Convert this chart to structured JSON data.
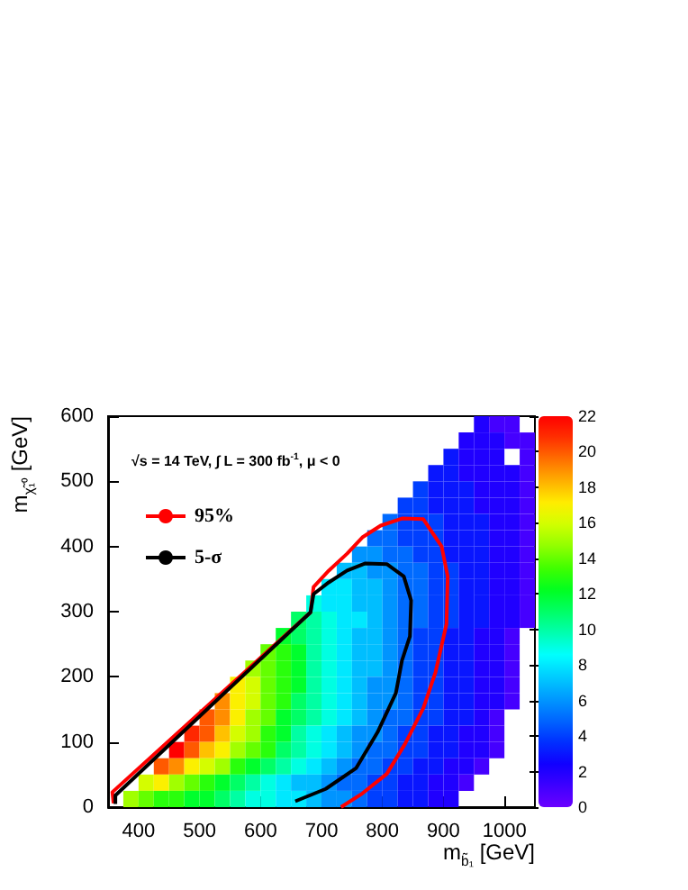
{
  "chart_data": {
    "type": "heatmap",
    "xlabel": "m$_{b̃₁}$ [GeV]",
    "ylabel": "m$_{χ̃₁⁰}$ [GeV]",
    "annotations": [
      "√s = 14 TeV, ∫ L = 300 fb$^{-1}$, μ < 0"
    ],
    "xlim": [
      350,
      1050
    ],
    "xticks": [
      400,
      500,
      600,
      700,
      800,
      900,
      1000
    ],
    "ylim": [
      0,
      600
    ],
    "yticks": [
      0,
      100,
      200,
      300,
      400,
      500,
      600
    ],
    "clim": [
      0,
      22
    ],
    "cticks": [
      0,
      2,
      4,
      6,
      8,
      10,
      12,
      14,
      16,
      18,
      20,
      22
    ],
    "legend": "top left",
    "marker": "none",
    "cells": [
      [
        null,
        null,
        null,
        null,
        null,
        null,
        null,
        null,
        null,
        null,
        null,
        null,
        null,
        null,
        null,
        null,
        null,
        null,
        null,
        null,
        null,
        null,
        null,
        null,
        2,
        1,
        1,
        null
      ],
      [
        null,
        null,
        null,
        null,
        null,
        null,
        null,
        null,
        null,
        null,
        null,
        null,
        null,
        null,
        null,
        null,
        null,
        null,
        null,
        null,
        null,
        null,
        null,
        2,
        2,
        2,
        1,
        1
      ],
      [
        null,
        null,
        null,
        null,
        null,
        null,
        null,
        null,
        null,
        null,
        null,
        null,
        null,
        null,
        null,
        null,
        null,
        null,
        null,
        null,
        null,
        null,
        3,
        2,
        2,
        2,
        null,
        1
      ],
      [
        null,
        null,
        null,
        null,
        null,
        null,
        null,
        null,
        null,
        null,
        null,
        null,
        null,
        null,
        null,
        null,
        null,
        null,
        null,
        null,
        null,
        3,
        3,
        2,
        2,
        2,
        2,
        1
      ],
      [
        null,
        null,
        null,
        null,
        null,
        null,
        null,
        null,
        null,
        null,
        null,
        null,
        null,
        null,
        null,
        null,
        null,
        null,
        null,
        null,
        4,
        3,
        3,
        3,
        2,
        2,
        2,
        1
      ],
      [
        null,
        null,
        null,
        null,
        null,
        null,
        null,
        null,
        null,
        null,
        null,
        null,
        null,
        null,
        null,
        null,
        null,
        null,
        null,
        4,
        4,
        3,
        3,
        3,
        2,
        2,
        2,
        1
      ],
      [
        null,
        null,
        null,
        null,
        null,
        null,
        null,
        null,
        null,
        null,
        null,
        null,
        null,
        null,
        null,
        null,
        null,
        null,
        5,
        4,
        4,
        4,
        3,
        3,
        3,
        2,
        2,
        1
      ],
      [
        null,
        null,
        null,
        null,
        null,
        null,
        null,
        null,
        null,
        null,
        null,
        null,
        null,
        null,
        null,
        null,
        null,
        5,
        5,
        4,
        4,
        4,
        3,
        3,
        3,
        2,
        2,
        1
      ],
      [
        null,
        null,
        null,
        null,
        null,
        null,
        null,
        null,
        null,
        null,
        null,
        null,
        null,
        null,
        null,
        null,
        6,
        6,
        5,
        5,
        4,
        4,
        3,
        3,
        3,
        2,
        2,
        1
      ],
      [
        null,
        null,
        null,
        null,
        null,
        null,
        null,
        null,
        null,
        null,
        null,
        null,
        null,
        null,
        null,
        7,
        7,
        6,
        6,
        5,
        5,
        4,
        4,
        3,
        3,
        2,
        2,
        1
      ],
      [
        null,
        null,
        null,
        null,
        null,
        null,
        null,
        null,
        null,
        null,
        null,
        null,
        null,
        null,
        8,
        8,
        7,
        7,
        6,
        5,
        5,
        4,
        4,
        3,
        3,
        2,
        2,
        1
      ],
      [
        null,
        null,
        null,
        null,
        null,
        null,
        null,
        null,
        null,
        null,
        null,
        null,
        null,
        9,
        8,
        8,
        7,
        7,
        6,
        5,
        5,
        4,
        4,
        3,
        3,
        2,
        2,
        1
      ],
      [
        null,
        null,
        null,
        null,
        null,
        null,
        null,
        null,
        null,
        null,
        null,
        null,
        11,
        10,
        9,
        8,
        8,
        7,
        6,
        5,
        5,
        4,
        4,
        3,
        3,
        2,
        2,
        1
      ],
      [
        null,
        null,
        null,
        null,
        null,
        null,
        null,
        null,
        null,
        null,
        null,
        12,
        11,
        10,
        9,
        8,
        7,
        7,
        6,
        5,
        4,
        4,
        3,
        3,
        2,
        2,
        1,
        null
      ],
      [
        null,
        null,
        null,
        null,
        null,
        null,
        null,
        null,
        null,
        null,
        14,
        13,
        12,
        10,
        9,
        8,
        7,
        7,
        6,
        5,
        4,
        4,
        3,
        3,
        2,
        2,
        1,
        null
      ],
      [
        null,
        null,
        null,
        null,
        null,
        null,
        null,
        null,
        null,
        15,
        14,
        13,
        12,
        10,
        9,
        8,
        7,
        7,
        6,
        5,
        4,
        4,
        3,
        3,
        2,
        2,
        1,
        null
      ],
      [
        null,
        null,
        null,
        null,
        null,
        null,
        null,
        null,
        17,
        16,
        14,
        13,
        12,
        10,
        9,
        8,
        7,
        6,
        6,
        5,
        4,
        4,
        3,
        3,
        2,
        2,
        1,
        null
      ],
      [
        null,
        null,
        null,
        null,
        null,
        null,
        null,
        19,
        17,
        16,
        14,
        13,
        11,
        10,
        9,
        8,
        7,
        6,
        6,
        5,
        4,
        4,
        3,
        3,
        2,
        2,
        1,
        null
      ],
      [
        null,
        null,
        null,
        null,
        null,
        null,
        20,
        19,
        17,
        15,
        14,
        12,
        11,
        10,
        9,
        8,
        7,
        6,
        5,
        5,
        4,
        4,
        3,
        3,
        2,
        1,
        null,
        null
      ],
      [
        null,
        null,
        null,
        null,
        null,
        21,
        20,
        18,
        16,
        15,
        13,
        12,
        10,
        9,
        8,
        7,
        6,
        6,
        5,
        4,
        4,
        3,
        3,
        2,
        2,
        1,
        null,
        null
      ],
      [
        null,
        null,
        null,
        null,
        22,
        20,
        18,
        17,
        15,
        14,
        13,
        11,
        10,
        9,
        8,
        7,
        6,
        5,
        5,
        4,
        4,
        3,
        3,
        2,
        2,
        1,
        null,
        null
      ],
      [
        null,
        null,
        null,
        20,
        19,
        17,
        16,
        15,
        13,
        12,
        11,
        10,
        9,
        8,
        7,
        6,
        5,
        5,
        4,
        4,
        3,
        3,
        2,
        2,
        1,
        null,
        null,
        null
      ],
      [
        null,
        null,
        16,
        17,
        15,
        14,
        13,
        12,
        11,
        10,
        9,
        8,
        7,
        7,
        6,
        5,
        5,
        4,
        4,
        3,
        3,
        2,
        2,
        1,
        null,
        null,
        null,
        null
      ],
      [
        null,
        15,
        14,
        13,
        13,
        12,
        12,
        11,
        10,
        9,
        9,
        8,
        8,
        7,
        6,
        6,
        5,
        4,
        4,
        3,
        3,
        2,
        2,
        null,
        null,
        null,
        null,
        null
      ]
    ],
    "series": [
      {
        "type": "line",
        "name": "95%",
        "color": "#ff0000",
        "x": [
          732,
          767,
          807,
          837,
          867,
          887,
          905,
          907,
          897,
          867,
          832,
          797,
          767,
          742,
          712,
          687,
          682,
          357,
          359
        ],
        "values": [
          0,
          21,
          51,
          97,
          152,
          207,
          281,
          354,
          400,
          442,
          443,
          432,
          414,
          389,
          363,
          338,
          299,
          23,
          6
        ]
      },
      {
        "type": "line",
        "name": "5-σ",
        "color": "#000000",
        "x": [
          657,
          707,
          757,
          792,
          822,
          832,
          845,
          847,
          835,
          807,
          772,
          742,
          712,
          687,
          682,
          362,
          362
        ],
        "values": [
          9,
          28,
          60,
          115,
          175,
          225,
          262,
          317,
          354,
          373,
          374,
          363,
          345,
          327,
          299,
          18,
          5
        ]
      }
    ]
  }
}
